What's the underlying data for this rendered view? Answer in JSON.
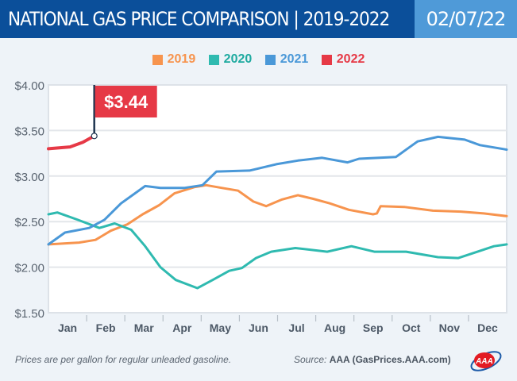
{
  "header": {
    "title": "NATIONAL GAS PRICE COMPARISON",
    "subtitle": "| 2019-2022",
    "date": "02/07/22"
  },
  "footer": {
    "note": "Prices are per gallon for regular unleaded gasoline.",
    "source_label": "Source:",
    "source": "AAA (GasPrices.AAA.com)",
    "logo_text": "AAA"
  },
  "colors": {
    "header": "#0b4f9a",
    "date_box": "#4f9ad8",
    "2019": "#f7944e",
    "2020": "#2fbab0",
    "2021": "#4a98d8",
    "2022": "#e63946"
  },
  "chart_data": {
    "type": "line",
    "title": "NATIONAL GAS PRICE COMPARISON | 2019-2022",
    "xlabel": "",
    "ylabel": "",
    "ylim": [
      1.5,
      4.0
    ],
    "y_ticks": [
      "$4.00",
      "$3.50",
      "$3.00",
      "$2.50",
      "$2.00",
      "$1.50"
    ],
    "y_tick_values": [
      4.0,
      3.5,
      3.0,
      2.5,
      2.0,
      1.5
    ],
    "x_ticks": [
      "Jan",
      "Feb",
      "Mar",
      "Apr",
      "May",
      "Jun",
      "Jul",
      "Aug",
      "Sep",
      "Oct",
      "Nov",
      "Dec"
    ],
    "grid": "horizontal",
    "legend": "top-center",
    "annotation": {
      "label": "$3.44",
      "series": "2022",
      "date": "02-07",
      "value": 3.44
    },
    "series": [
      {
        "name": "2019",
        "points": [
          [
            "01-01",
            2.25
          ],
          [
            "01-25",
            2.27
          ],
          [
            "02-08",
            2.3
          ],
          [
            "02-20",
            2.4
          ],
          [
            "03-03",
            2.47
          ],
          [
            "03-15",
            2.58
          ],
          [
            "03-28",
            2.68
          ],
          [
            "04-10",
            2.81
          ],
          [
            "04-26",
            2.88
          ],
          [
            "05-05",
            2.9
          ],
          [
            "05-17",
            2.87
          ],
          [
            "05-30",
            2.84
          ],
          [
            "06-12",
            2.72
          ],
          [
            "06-22",
            2.67
          ],
          [
            "07-04",
            2.74
          ],
          [
            "07-17",
            2.79
          ],
          [
            "07-29",
            2.75
          ],
          [
            "08-12",
            2.7
          ],
          [
            "08-27",
            2.63
          ],
          [
            "09-16",
            2.58
          ],
          [
            "09-19",
            2.59
          ],
          [
            "09-22",
            2.67
          ],
          [
            "10-11",
            2.66
          ],
          [
            "11-03",
            2.62
          ],
          [
            "11-25",
            2.61
          ],
          [
            "12-13",
            2.59
          ],
          [
            "12-31",
            2.56
          ]
        ]
      },
      {
        "name": "2020",
        "points": [
          [
            "01-01",
            2.58
          ],
          [
            "01-08",
            2.6
          ],
          [
            "01-24",
            2.52
          ],
          [
            "02-11",
            2.43
          ],
          [
            "02-23",
            2.48
          ],
          [
            "03-06",
            2.41
          ],
          [
            "03-17",
            2.23
          ],
          [
            "03-29",
            2.0
          ],
          [
            "04-11",
            1.86
          ],
          [
            "04-28",
            1.77
          ],
          [
            "05-10",
            1.86
          ],
          [
            "05-23",
            1.96
          ],
          [
            "06-03",
            1.99
          ],
          [
            "06-14",
            2.1
          ],
          [
            "06-26",
            2.17
          ],
          [
            "07-15",
            2.21
          ],
          [
            "08-10",
            2.17
          ],
          [
            "08-29",
            2.23
          ],
          [
            "09-17",
            2.17
          ],
          [
            "10-12",
            2.17
          ],
          [
            "11-07",
            2.11
          ],
          [
            "11-23",
            2.1
          ],
          [
            "12-06",
            2.16
          ],
          [
            "12-21",
            2.23
          ],
          [
            "12-31",
            2.25
          ]
        ]
      },
      {
        "name": "2021",
        "points": [
          [
            "01-01",
            2.25
          ],
          [
            "01-14",
            2.38
          ],
          [
            "02-03",
            2.43
          ],
          [
            "02-15",
            2.52
          ],
          [
            "02-28",
            2.7
          ],
          [
            "03-17",
            2.89
          ],
          [
            "03-29",
            2.87
          ],
          [
            "04-18",
            2.87
          ],
          [
            "05-02",
            2.9
          ],
          [
            "05-13",
            3.05
          ],
          [
            "06-09",
            3.06
          ],
          [
            "06-30",
            3.13
          ],
          [
            "07-17",
            3.17
          ],
          [
            "08-06",
            3.2
          ],
          [
            "08-26",
            3.15
          ],
          [
            "09-05",
            3.19
          ],
          [
            "10-04",
            3.21
          ],
          [
            "10-21",
            3.38
          ],
          [
            "11-07",
            3.43
          ],
          [
            "11-28",
            3.4
          ],
          [
            "12-10",
            3.34
          ],
          [
            "12-31",
            3.29
          ]
        ]
      },
      {
        "name": "2022",
        "points": [
          [
            "01-01",
            3.3
          ],
          [
            "01-18",
            3.32
          ],
          [
            "01-28",
            3.37
          ],
          [
            "02-07",
            3.44
          ]
        ]
      }
    ]
  }
}
